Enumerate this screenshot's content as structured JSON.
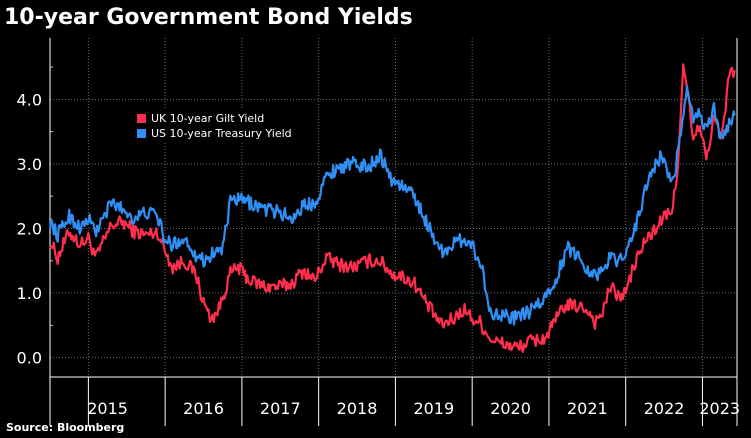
{
  "title": "10-year Government Bond Yields",
  "source": "Source: Bloomberg",
  "colors": {
    "background": "#000000",
    "uk": "#ff2e4d",
    "us": "#2f8ff5",
    "grid": "#6f6f6f",
    "text": "#ffffff"
  },
  "chart_data": {
    "type": "line",
    "title": "10-year Government Bond Yields",
    "xlabel": "",
    "ylabel": "",
    "x_unit": "year",
    "xlim": [
      2014.5,
      2023.45
    ],
    "ylim": [
      -0.3,
      4.95
    ],
    "yticks": [
      0.0,
      1.0,
      2.0,
      3.0,
      4.0
    ],
    "ytick_labels": [
      "0.0",
      "1.0",
      "2.0",
      "3.0",
      "4.0"
    ],
    "xtick_labels": [
      "2015",
      "2016",
      "2017",
      "2018",
      "2019",
      "2020",
      "2021",
      "2022",
      "2023"
    ],
    "year_boundaries": [
      2015,
      2016,
      2017,
      2018,
      2019,
      2020,
      2021,
      2022,
      2023
    ],
    "grid": true,
    "legend_position": "top-left",
    "series": [
      {
        "name": "UK 10-year Gilt Yield",
        "color": "#ff2e4d",
        "points": [
          [
            2014.5,
            1.8
          ],
          [
            2014.6,
            1.55
          ],
          [
            2014.75,
            1.95
          ],
          [
            2014.9,
            1.75
          ],
          [
            2015.0,
            1.85
          ],
          [
            2015.1,
            1.55
          ],
          [
            2015.3,
            2.05
          ],
          [
            2015.45,
            2.1
          ],
          [
            2015.6,
            1.95
          ],
          [
            2015.75,
            1.9
          ],
          [
            2015.9,
            1.95
          ],
          [
            2016.0,
            1.65
          ],
          [
            2016.1,
            1.4
          ],
          [
            2016.25,
            1.5
          ],
          [
            2016.4,
            1.3
          ],
          [
            2016.5,
            0.85
          ],
          [
            2016.6,
            0.6
          ],
          [
            2016.7,
            0.75
          ],
          [
            2016.85,
            1.3
          ],
          [
            2016.95,
            1.4
          ],
          [
            2017.1,
            1.2
          ],
          [
            2017.3,
            1.1
          ],
          [
            2017.5,
            1.1
          ],
          [
            2017.65,
            1.15
          ],
          [
            2017.8,
            1.35
          ],
          [
            2017.95,
            1.2
          ],
          [
            2018.1,
            1.55
          ],
          [
            2018.25,
            1.45
          ],
          [
            2018.45,
            1.4
          ],
          [
            2018.65,
            1.5
          ],
          [
            2018.8,
            1.5
          ],
          [
            2018.95,
            1.3
          ],
          [
            2019.1,
            1.25
          ],
          [
            2019.25,
            1.15
          ],
          [
            2019.4,
            0.85
          ],
          [
            2019.6,
            0.5
          ],
          [
            2019.75,
            0.6
          ],
          [
            2019.9,
            0.75
          ],
          [
            2020.0,
            0.6
          ],
          [
            2020.1,
            0.55
          ],
          [
            2020.2,
            0.35
          ],
          [
            2020.3,
            0.25
          ],
          [
            2020.45,
            0.2
          ],
          [
            2020.6,
            0.15
          ],
          [
            2020.75,
            0.25
          ],
          [
            2020.95,
            0.3
          ],
          [
            2021.1,
            0.6
          ],
          [
            2021.2,
            0.8
          ],
          [
            2021.35,
            0.8
          ],
          [
            2021.5,
            0.75
          ],
          [
            2021.6,
            0.55
          ],
          [
            2021.7,
            0.7
          ],
          [
            2021.8,
            1.1
          ],
          [
            2021.9,
            0.95
          ],
          [
            2022.0,
            1.0
          ],
          [
            2022.1,
            1.4
          ],
          [
            2022.25,
            1.8
          ],
          [
            2022.4,
            2.0
          ],
          [
            2022.5,
            2.2
          ],
          [
            2022.6,
            2.2
          ],
          [
            2022.68,
            3.0
          ],
          [
            2022.75,
            4.5
          ],
          [
            2022.82,
            4.0
          ],
          [
            2022.88,
            3.3
          ],
          [
            2022.95,
            3.6
          ],
          [
            2023.05,
            3.1
          ],
          [
            2023.15,
            3.7
          ],
          [
            2023.25,
            3.4
          ],
          [
            2023.35,
            4.4
          ],
          [
            2023.42,
            4.45
          ]
        ]
      },
      {
        "name": "US 10-year Treasury Yield",
        "color": "#2f8ff5",
        "points": [
          [
            2014.5,
            2.1
          ],
          [
            2014.6,
            1.9
          ],
          [
            2014.75,
            2.2
          ],
          [
            2014.9,
            2.0
          ],
          [
            2015.0,
            2.15
          ],
          [
            2015.1,
            1.95
          ],
          [
            2015.3,
            2.4
          ],
          [
            2015.45,
            2.3
          ],
          [
            2015.6,
            2.15
          ],
          [
            2015.75,
            2.25
          ],
          [
            2015.9,
            2.2
          ],
          [
            2016.0,
            1.8
          ],
          [
            2016.1,
            1.75
          ],
          [
            2016.25,
            1.85
          ],
          [
            2016.4,
            1.6
          ],
          [
            2016.5,
            1.5
          ],
          [
            2016.6,
            1.6
          ],
          [
            2016.75,
            1.7
          ],
          [
            2016.85,
            2.4
          ],
          [
            2016.95,
            2.45
          ],
          [
            2017.1,
            2.4
          ],
          [
            2017.3,
            2.3
          ],
          [
            2017.5,
            2.25
          ],
          [
            2017.65,
            2.15
          ],
          [
            2017.8,
            2.35
          ],
          [
            2017.95,
            2.4
          ],
          [
            2018.1,
            2.8
          ],
          [
            2018.25,
            2.95
          ],
          [
            2018.45,
            3.0
          ],
          [
            2018.65,
            2.95
          ],
          [
            2018.8,
            3.15
          ],
          [
            2018.95,
            2.75
          ],
          [
            2019.1,
            2.65
          ],
          [
            2019.25,
            2.5
          ],
          [
            2019.4,
            2.1
          ],
          [
            2019.6,
            1.65
          ],
          [
            2019.75,
            1.75
          ],
          [
            2019.9,
            1.85
          ],
          [
            2020.0,
            1.75
          ],
          [
            2020.15,
            1.3
          ],
          [
            2020.22,
            0.7
          ],
          [
            2020.35,
            0.7
          ],
          [
            2020.5,
            0.6
          ],
          [
            2020.65,
            0.65
          ],
          [
            2020.8,
            0.75
          ],
          [
            2020.95,
            0.92
          ],
          [
            2021.1,
            1.25
          ],
          [
            2021.25,
            1.7
          ],
          [
            2021.4,
            1.55
          ],
          [
            2021.55,
            1.3
          ],
          [
            2021.65,
            1.3
          ],
          [
            2021.8,
            1.55
          ],
          [
            2021.9,
            1.5
          ],
          [
            2022.0,
            1.65
          ],
          [
            2022.15,
            2.1
          ],
          [
            2022.3,
            2.8
          ],
          [
            2022.45,
            3.1
          ],
          [
            2022.55,
            2.9
          ],
          [
            2022.62,
            2.7
          ],
          [
            2022.72,
            3.5
          ],
          [
            2022.8,
            4.1
          ],
          [
            2022.88,
            3.7
          ],
          [
            2022.95,
            3.8
          ],
          [
            2023.05,
            3.5
          ],
          [
            2023.15,
            3.9
          ],
          [
            2023.22,
            3.5
          ],
          [
            2023.3,
            3.45
          ],
          [
            2023.38,
            3.7
          ],
          [
            2023.42,
            3.75
          ]
        ]
      }
    ]
  }
}
